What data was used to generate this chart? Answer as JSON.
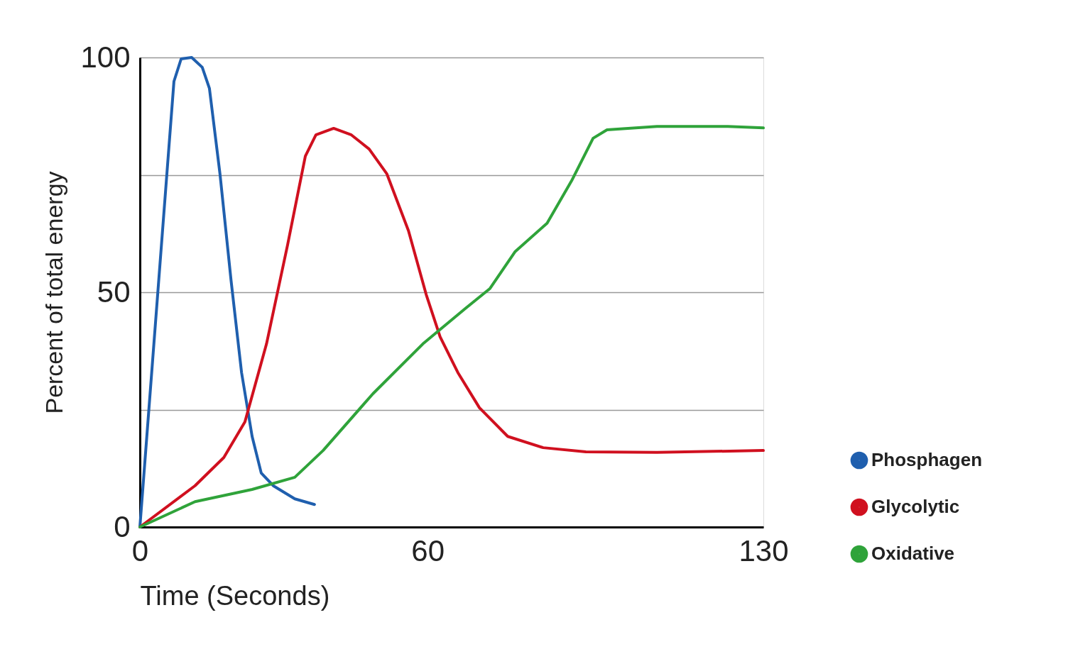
{
  "chart_data": {
    "type": "line",
    "xlabel": "Time (Seconds)",
    "ylabel": "Percent of total energy",
    "xlim": [
      0,
      130
    ],
    "xticks": [
      0,
      60,
      130
    ],
    "ylim": [
      0,
      100
    ],
    "yticks": [
      0,
      {
        "value": 25,
        "label": null
      },
      50,
      {
        "value": 75,
        "label": null
      },
      100
    ],
    "grid": "y",
    "legend": "right",
    "marker": "none",
    "line_style": "solid",
    "series": [
      {
        "name": "Phosphagen",
        "color": "#1f5fae",
        "x": [
          0,
          7.1,
          8.6,
          10.8,
          13.0,
          14.5,
          16.7,
          19.0,
          21.2,
          23.4,
          25.3,
          27.8,
          32.3,
          36.4
        ],
        "values": [
          0,
          94.9,
          99.7,
          100,
          97.9,
          93.4,
          75.2,
          52.6,
          32.9,
          19.3,
          11.5,
          8.8,
          6.0,
          4.8
        ]
      },
      {
        "name": "Glycolytic",
        "color": "#d0101f",
        "x": [
          0,
          11.5,
          17.5,
          21.9,
          26.4,
          30.8,
          34.5,
          36.7,
          40.4,
          44.1,
          47.8,
          51.5,
          56.0,
          59.7,
          62.6,
          66.3,
          70.8,
          76.7,
          84.1,
          93.0,
          107.8,
          130
        ],
        "values": [
          0,
          8.8,
          14.8,
          22.4,
          39.0,
          60.1,
          79.0,
          83.5,
          84.9,
          83.5,
          80.5,
          75.2,
          63.1,
          49.5,
          40.5,
          32.9,
          25.4,
          19.3,
          16.9,
          16.0,
          15.9,
          16.3
        ]
      },
      {
        "name": "Oxidative",
        "color": "#2fa33a",
        "x": [
          0,
          11.5,
          23.4,
          32.3,
          38.2,
          48.6,
          59.0,
          67.8,
          73.0,
          78.2,
          84.9,
          90.0,
          94.5,
          97.4,
          107.8,
          122.6,
          130
        ],
        "values": [
          0,
          5.4,
          8.0,
          10.6,
          16.3,
          28.4,
          39.0,
          46.5,
          50.8,
          58.6,
          64.7,
          73.7,
          82.8,
          84.6,
          85.3,
          85.3,
          85.0
        ]
      }
    ]
  }
}
